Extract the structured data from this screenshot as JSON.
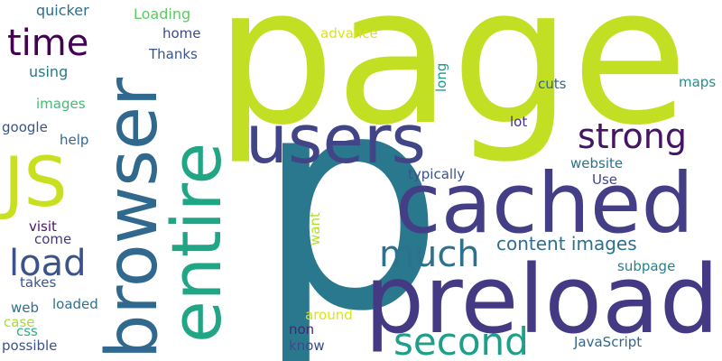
{
  "words": [
    {
      "text": "page",
      "color": "#c2df23"
    },
    {
      "text": "p",
      "color": "#2a788e"
    },
    {
      "text": "preload",
      "color": "#443a83"
    },
    {
      "text": "cached",
      "color": "#433e85"
    },
    {
      "text": "users",
      "color": "#414487"
    },
    {
      "text": "browser",
      "color": "#31688e"
    },
    {
      "text": "entire",
      "color": "#21a685"
    },
    {
      "text": "JS",
      "color": "#c8e020"
    },
    {
      "text": "second",
      "color": "#1f9e89"
    },
    {
      "text": "strong",
      "color": "#471365"
    },
    {
      "text": "much",
      "color": "#2c728e"
    },
    {
      "text": "time",
      "color": "#440154"
    },
    {
      "text": "load",
      "color": "#3b528b"
    },
    {
      "text": "content images",
      "color": "#2d708e"
    },
    {
      "text": "quicker",
      "color": "#2e6e8e"
    },
    {
      "text": "Loading",
      "color": "#5ec962"
    },
    {
      "text": "home",
      "color": "#3e4989"
    },
    {
      "text": "advance",
      "color": "#dde318"
    },
    {
      "text": "Thanks",
      "color": "#39568c"
    },
    {
      "text": "using",
      "color": "#2a788e"
    },
    {
      "text": "long",
      "color": "#1f9a8a"
    },
    {
      "text": "cuts",
      "color": "#33638d"
    },
    {
      "text": "maps",
      "color": "#21918c"
    },
    {
      "text": "images",
      "color": "#40bd72"
    },
    {
      "text": "lot",
      "color": "#46327e"
    },
    {
      "text": "google",
      "color": "#3b528b"
    },
    {
      "text": "help",
      "color": "#31688e"
    },
    {
      "text": "typically",
      "color": "#3a538b"
    },
    {
      "text": "website",
      "color": "#2c728e"
    },
    {
      "text": "Use",
      "color": "#3f4788"
    },
    {
      "text": "visit",
      "color": "#481467"
    },
    {
      "text": "want",
      "color": "#b5de2b"
    },
    {
      "text": "come",
      "color": "#453882"
    },
    {
      "text": "takes",
      "color": "#39568c"
    },
    {
      "text": "subpage",
      "color": "#26828e"
    },
    {
      "text": "web",
      "color": "#2e6e8e"
    },
    {
      "text": "loaded",
      "color": "#2c728e"
    },
    {
      "text": "case",
      "color": "#a5db36"
    },
    {
      "text": "around",
      "color": "#dde318"
    },
    {
      "text": "non",
      "color": "#482475"
    },
    {
      "text": "css",
      "color": "#2db27d"
    },
    {
      "text": "possible",
      "color": "#3b528b"
    },
    {
      "text": "know",
      "color": "#3e4989"
    },
    {
      "text": "JavaScript",
      "color": "#31688e"
    }
  ]
}
